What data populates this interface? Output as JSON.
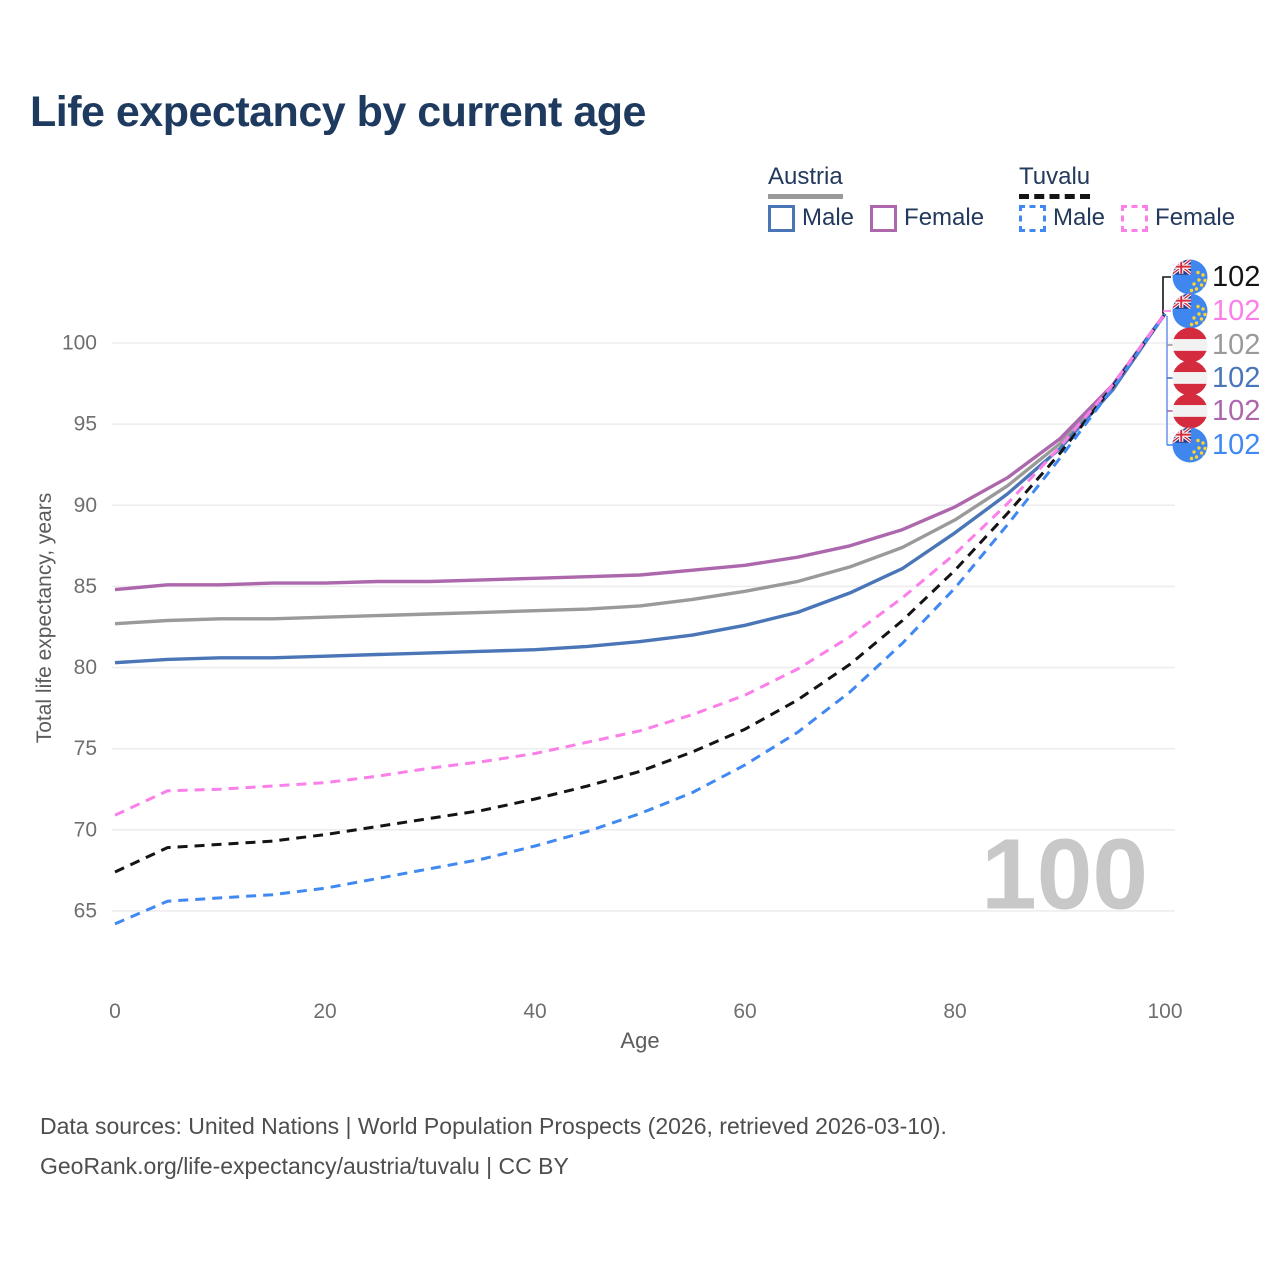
{
  "title": "Life expectancy by current age",
  "legend": {
    "groups": [
      {
        "name": "Austria",
        "line_style": "solid",
        "underline_color": "#9a9a9a",
        "items": [
          {
            "label": "Male",
            "color": "#4a76b8"
          },
          {
            "label": "Female",
            "color": "#ad68ad"
          }
        ]
      },
      {
        "name": "Tuvalu",
        "line_style": "dashed",
        "underline_color": "#141414",
        "items": [
          {
            "label": "Male",
            "color": "#4189f2"
          },
          {
            "label": "Female",
            "color": "#fb7fe9"
          }
        ]
      }
    ]
  },
  "chart_data": {
    "type": "line",
    "title": "Life expectancy by current age",
    "xlabel": "Age",
    "ylabel": "Total life expectancy, years",
    "xlim": [
      0,
      100
    ],
    "ylim": [
      63,
      103
    ],
    "xticks": [
      0,
      20,
      40,
      60,
      80,
      100
    ],
    "yticks": [
      65,
      70,
      75,
      80,
      85,
      90,
      95,
      100
    ],
    "grid": "horizontal",
    "watermark_age": "100",
    "x": [
      0,
      5,
      10,
      15,
      20,
      25,
      30,
      35,
      40,
      45,
      50,
      55,
      60,
      65,
      70,
      75,
      80,
      85,
      90,
      95,
      100
    ],
    "series": [
      {
        "name": "Austria",
        "country": "austria",
        "color": "#9a9a9a",
        "dashed": false,
        "values": [
          82.7,
          82.9,
          83.0,
          83.0,
          83.1,
          83.2,
          83.3,
          83.4,
          83.5,
          83.6,
          83.8,
          84.2,
          84.7,
          85.3,
          86.2,
          87.4,
          89.1,
          91.2,
          93.8,
          97.2,
          101.8
        ]
      },
      {
        "name": "Austria Male",
        "country": "austria",
        "color": "#4a76b8",
        "dashed": false,
        "values": [
          80.3,
          80.5,
          80.6,
          80.6,
          80.7,
          80.8,
          80.9,
          81.0,
          81.1,
          81.3,
          81.6,
          82.0,
          82.6,
          83.4,
          84.6,
          86.1,
          88.3,
          90.7,
          93.5,
          97.1,
          101.8
        ]
      },
      {
        "name": "Austria Female",
        "country": "austria",
        "color": "#ad68ad",
        "dashed": false,
        "values": [
          84.8,
          85.1,
          85.1,
          85.2,
          85.2,
          85.3,
          85.3,
          85.4,
          85.5,
          85.6,
          85.7,
          86.0,
          86.3,
          86.8,
          87.5,
          88.5,
          89.9,
          91.7,
          94.1,
          97.4,
          101.8
        ]
      },
      {
        "name": "Tuvalu",
        "country": "tuvalu",
        "color": "#141414",
        "dashed": true,
        "values": [
          67.4,
          68.9,
          69.1,
          69.3,
          69.7,
          70.2,
          70.7,
          71.2,
          71.9,
          72.7,
          73.6,
          74.8,
          76.2,
          78.0,
          80.2,
          82.9,
          86.0,
          89.5,
          93.2,
          97.3,
          101.8
        ]
      },
      {
        "name": "Tuvalu Male",
        "country": "tuvalu",
        "color": "#4189f2",
        "dashed": true,
        "values": [
          64.2,
          65.6,
          65.8,
          66.0,
          66.4,
          67.0,
          67.6,
          68.2,
          69.0,
          69.9,
          71.0,
          72.3,
          74.0,
          76.0,
          78.5,
          81.5,
          84.9,
          88.8,
          92.9,
          97.2,
          101.8
        ]
      },
      {
        "name": "Tuvalu Female",
        "country": "tuvalu",
        "color": "#fb7fe9",
        "dashed": true,
        "values": [
          70.9,
          72.4,
          72.5,
          72.7,
          72.9,
          73.3,
          73.8,
          74.2,
          74.7,
          75.4,
          76.1,
          77.1,
          78.3,
          79.9,
          81.9,
          84.3,
          87.0,
          90.1,
          93.6,
          97.4,
          101.8
        ]
      }
    ],
    "end_labels": [
      {
        "country": "tuvalu",
        "value": "102",
        "color": "#141414"
      },
      {
        "country": "tuvalu",
        "value": "102",
        "color": "#fb7fe9"
      },
      {
        "country": "austria",
        "value": "102",
        "color": "#9a9a9a"
      },
      {
        "country": "austria",
        "value": "102",
        "color": "#4a76b8"
      },
      {
        "country": "austria",
        "value": "102",
        "color": "#ad68ad"
      },
      {
        "country": "tuvalu",
        "value": "102",
        "color": "#4189f2"
      }
    ]
  },
  "colors": {
    "title_text": "#1e3a5f",
    "legend_text": "#233a5c",
    "axis_text": "#6f6f6f",
    "gridline": "#ededed",
    "watermark": "#c8c8c8",
    "footer_text": "#4e4e4e",
    "flag_austria_red": "#d52b3f",
    "flag_tuvalu_blue": "#3f87ee",
    "flag_star_yellow": "#ffd42e"
  },
  "footer": {
    "line1": "Data sources: United Nations | World Population Prospects (2026, retrieved 2026-03-10).",
    "line2": "GeoRank.org/life-expectancy/austria/tuvalu | CC BY"
  }
}
